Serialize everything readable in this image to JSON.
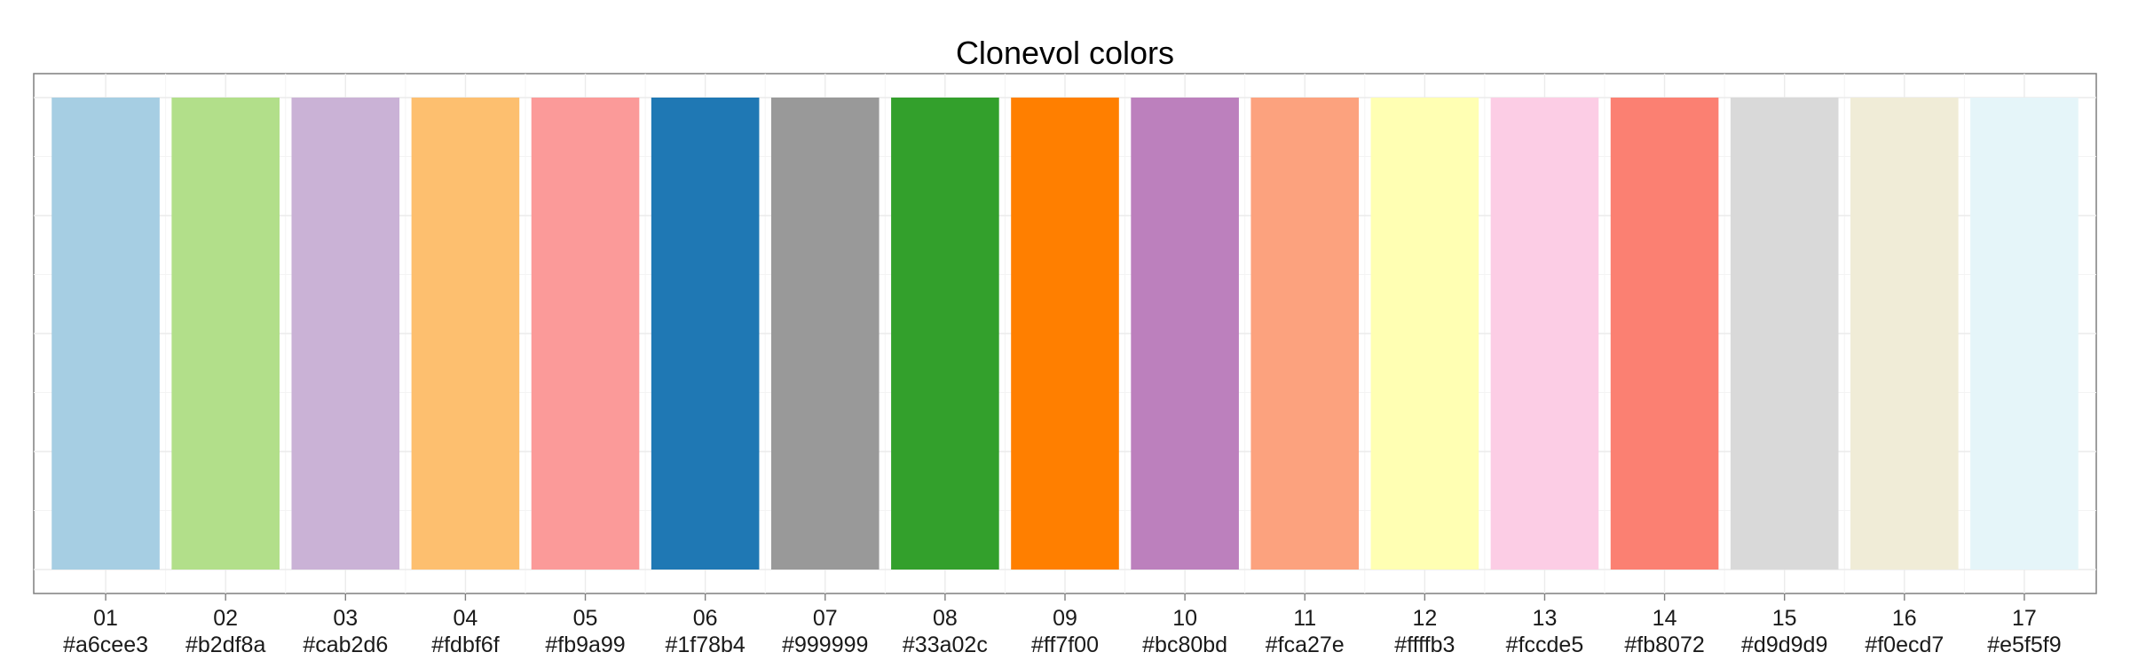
{
  "chart_data": {
    "type": "bar",
    "title": "Clonevol colors",
    "xlabel": "",
    "ylabel": "",
    "ylim": [
      0,
      1
    ],
    "grid": true,
    "legend": "none",
    "categories": [
      "01\n#a6cee3",
      "02\n#b2df8a",
      "03\n#cab2d6",
      "04\n#fdbf6f",
      "05\n#fb9a99",
      "06\n#1f78b4",
      "07\n#999999",
      "08\n#33a02c",
      "09\n#ff7f00",
      "10\n#bc80bd",
      "11\n#fca27e",
      "12\n#ffffb3",
      "13\n#fccde5",
      "14\n#fb8072",
      "15\n#d9d9d9",
      "16\n#f0ecd7",
      "17\n#e5f5f9"
    ],
    "tick_numbers": [
      "01",
      "02",
      "03",
      "04",
      "05",
      "06",
      "07",
      "08",
      "09",
      "10",
      "11",
      "12",
      "13",
      "14",
      "15",
      "16",
      "17"
    ],
    "tick_hex": [
      "#a6cee3",
      "#b2df8a",
      "#cab2d6",
      "#fdbf6f",
      "#fb9a99",
      "#1f78b4",
      "#999999",
      "#33a02c",
      "#ff7f00",
      "#bc80bd",
      "#fca27e",
      "#ffffb3",
      "#fccde5",
      "#fb8072",
      "#d9d9d9",
      "#f0ecd7",
      "#e5f5f9"
    ],
    "values": [
      1,
      1,
      1,
      1,
      1,
      1,
      1,
      1,
      1,
      1,
      1,
      1,
      1,
      1,
      1,
      1,
      1
    ],
    "colors": [
      "#a6cee3",
      "#b2df8a",
      "#cab2d6",
      "#fdbf6f",
      "#fb9a99",
      "#1f78b4",
      "#999999",
      "#33a02c",
      "#ff7f00",
      "#bc80bd",
      "#fca27e",
      "#ffffb3",
      "#fccde5",
      "#fb8072",
      "#d9d9d9",
      "#f0ecd7",
      "#e5f5f9"
    ]
  }
}
